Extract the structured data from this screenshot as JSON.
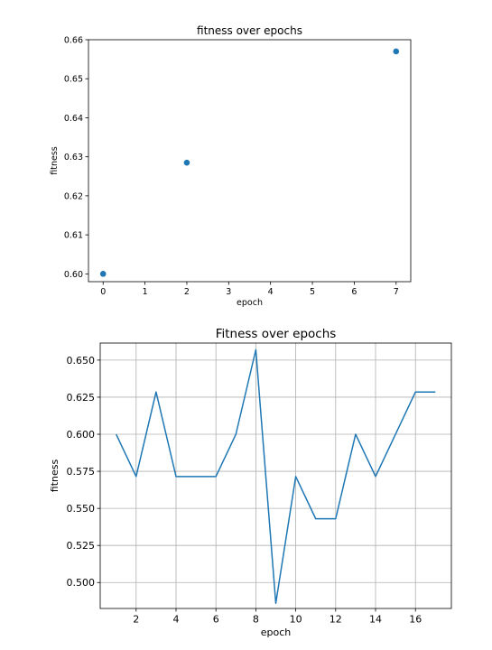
{
  "chart_data": [
    {
      "type": "scatter",
      "title": "fitness over epochs",
      "xlabel": "epoch",
      "ylabel": "fitness",
      "xlim": [
        -0.35,
        7.35
      ],
      "ylim": [
        0.598,
        0.66
      ],
      "xticks": [
        0,
        1,
        2,
        3,
        4,
        5,
        6,
        7
      ],
      "yticks": [
        0.6,
        0.61,
        0.62,
        0.63,
        0.64,
        0.65,
        0.66
      ],
      "ytick_labels": [
        "0.60",
        "0.61",
        "0.62",
        "0.63",
        "0.64",
        "0.65",
        "0.66"
      ],
      "grid": false,
      "series": [
        {
          "x": [
            0,
            2,
            7
          ],
          "y": [
            0.6,
            0.6285,
            0.657
          ],
          "color": "#1f77b4"
        }
      ]
    },
    {
      "type": "line",
      "title": "Fitness over epochs",
      "xlabel": "epoch",
      "ylabel": "fitness",
      "xlim": [
        0.2,
        17.8
      ],
      "ylim": [
        0.4825,
        0.6615
      ],
      "xticks": [
        2,
        4,
        6,
        8,
        10,
        12,
        14,
        16
      ],
      "yticks": [
        0.5,
        0.525,
        0.55,
        0.575,
        0.6,
        0.625,
        0.65
      ],
      "ytick_labels": [
        "0.500",
        "0.525",
        "0.550",
        "0.575",
        "0.600",
        "0.625",
        "0.650"
      ],
      "grid": true,
      "series": [
        {
          "x": [
            1,
            2,
            3,
            4,
            5,
            6,
            7,
            8,
            9,
            10,
            11,
            12,
            13,
            14,
            15,
            16,
            17
          ],
          "y": [
            0.6,
            0.5715,
            0.6285,
            0.5715,
            0.5715,
            0.5715,
            0.6,
            0.657,
            0.486,
            0.5715,
            0.543,
            0.543,
            0.6,
            0.5715,
            0.6,
            0.6285,
            0.6285
          ],
          "color": "#1f77b4"
        }
      ]
    }
  ]
}
